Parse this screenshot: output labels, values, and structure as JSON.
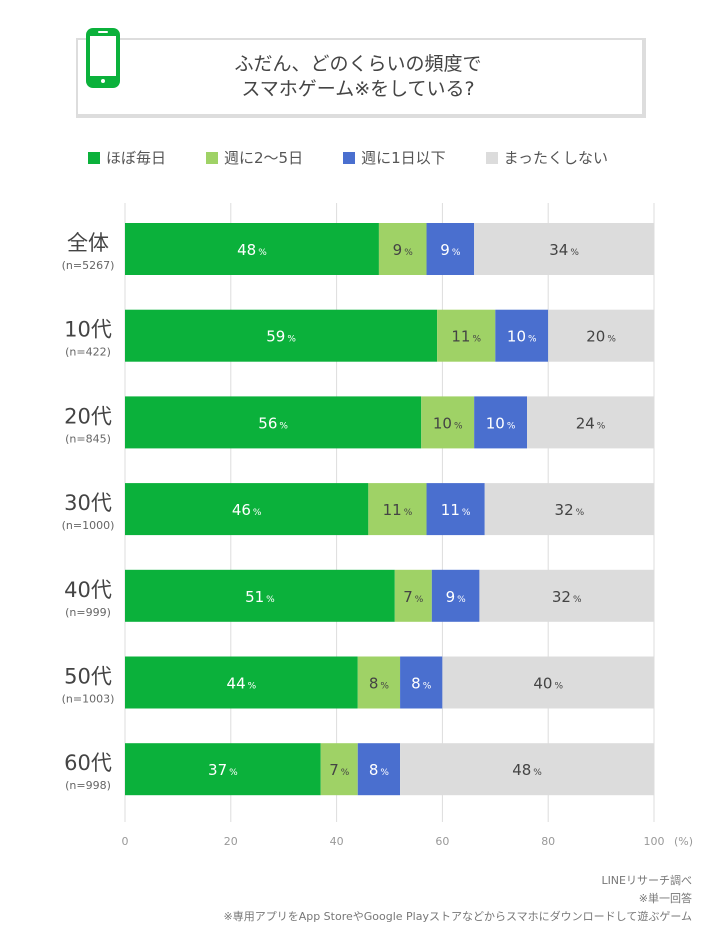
{
  "title": {
    "line1": "ふだん、どのくらいの頻度で",
    "line2": "スマホゲーム※をしている?"
  },
  "icon": "smartphone-icon",
  "colors": [
    "#0bb13b",
    "#9fd266",
    "#4a6fcf",
    "#dcdcdc"
  ],
  "chart_data": {
    "type": "bar",
    "orientation": "horizontal",
    "stacked": true,
    "categories": [
      "全体",
      "10代",
      "20代",
      "30代",
      "40代",
      "50代",
      "60代"
    ],
    "category_notes": [
      "(n=5267)",
      "(n=422)",
      "(n=845)",
      "(n=1000)",
      "(n=999)",
      "(n=1003)",
      "(n=998)"
    ],
    "series": [
      {
        "name": "ほぼ毎日",
        "values": [
          48,
          59,
          56,
          46,
          51,
          44,
          37
        ]
      },
      {
        "name": "週に2〜5日",
        "values": [
          9,
          11,
          10,
          11,
          7,
          8,
          7
        ]
      },
      {
        "name": "週に1日以下",
        "values": [
          9,
          10,
          10,
          11,
          9,
          8,
          8
        ]
      },
      {
        "name": "まったくしない",
        "values": [
          34,
          20,
          24,
          32,
          32,
          40,
          48
        ]
      }
    ],
    "value_suffix": "%",
    "xlim": [
      0,
      100
    ],
    "xticks": [
      0,
      20,
      40,
      60,
      80,
      100
    ],
    "xunit": "(%)",
    "grid": true,
    "legend": "top"
  },
  "footer": {
    "source": "LINEリサーチ調べ",
    "note1": "※単一回答",
    "note2": "※専用アプリをApp StoreやGoogle Playストアなどからスマホにダウンロードして遊ぶゲーム"
  }
}
